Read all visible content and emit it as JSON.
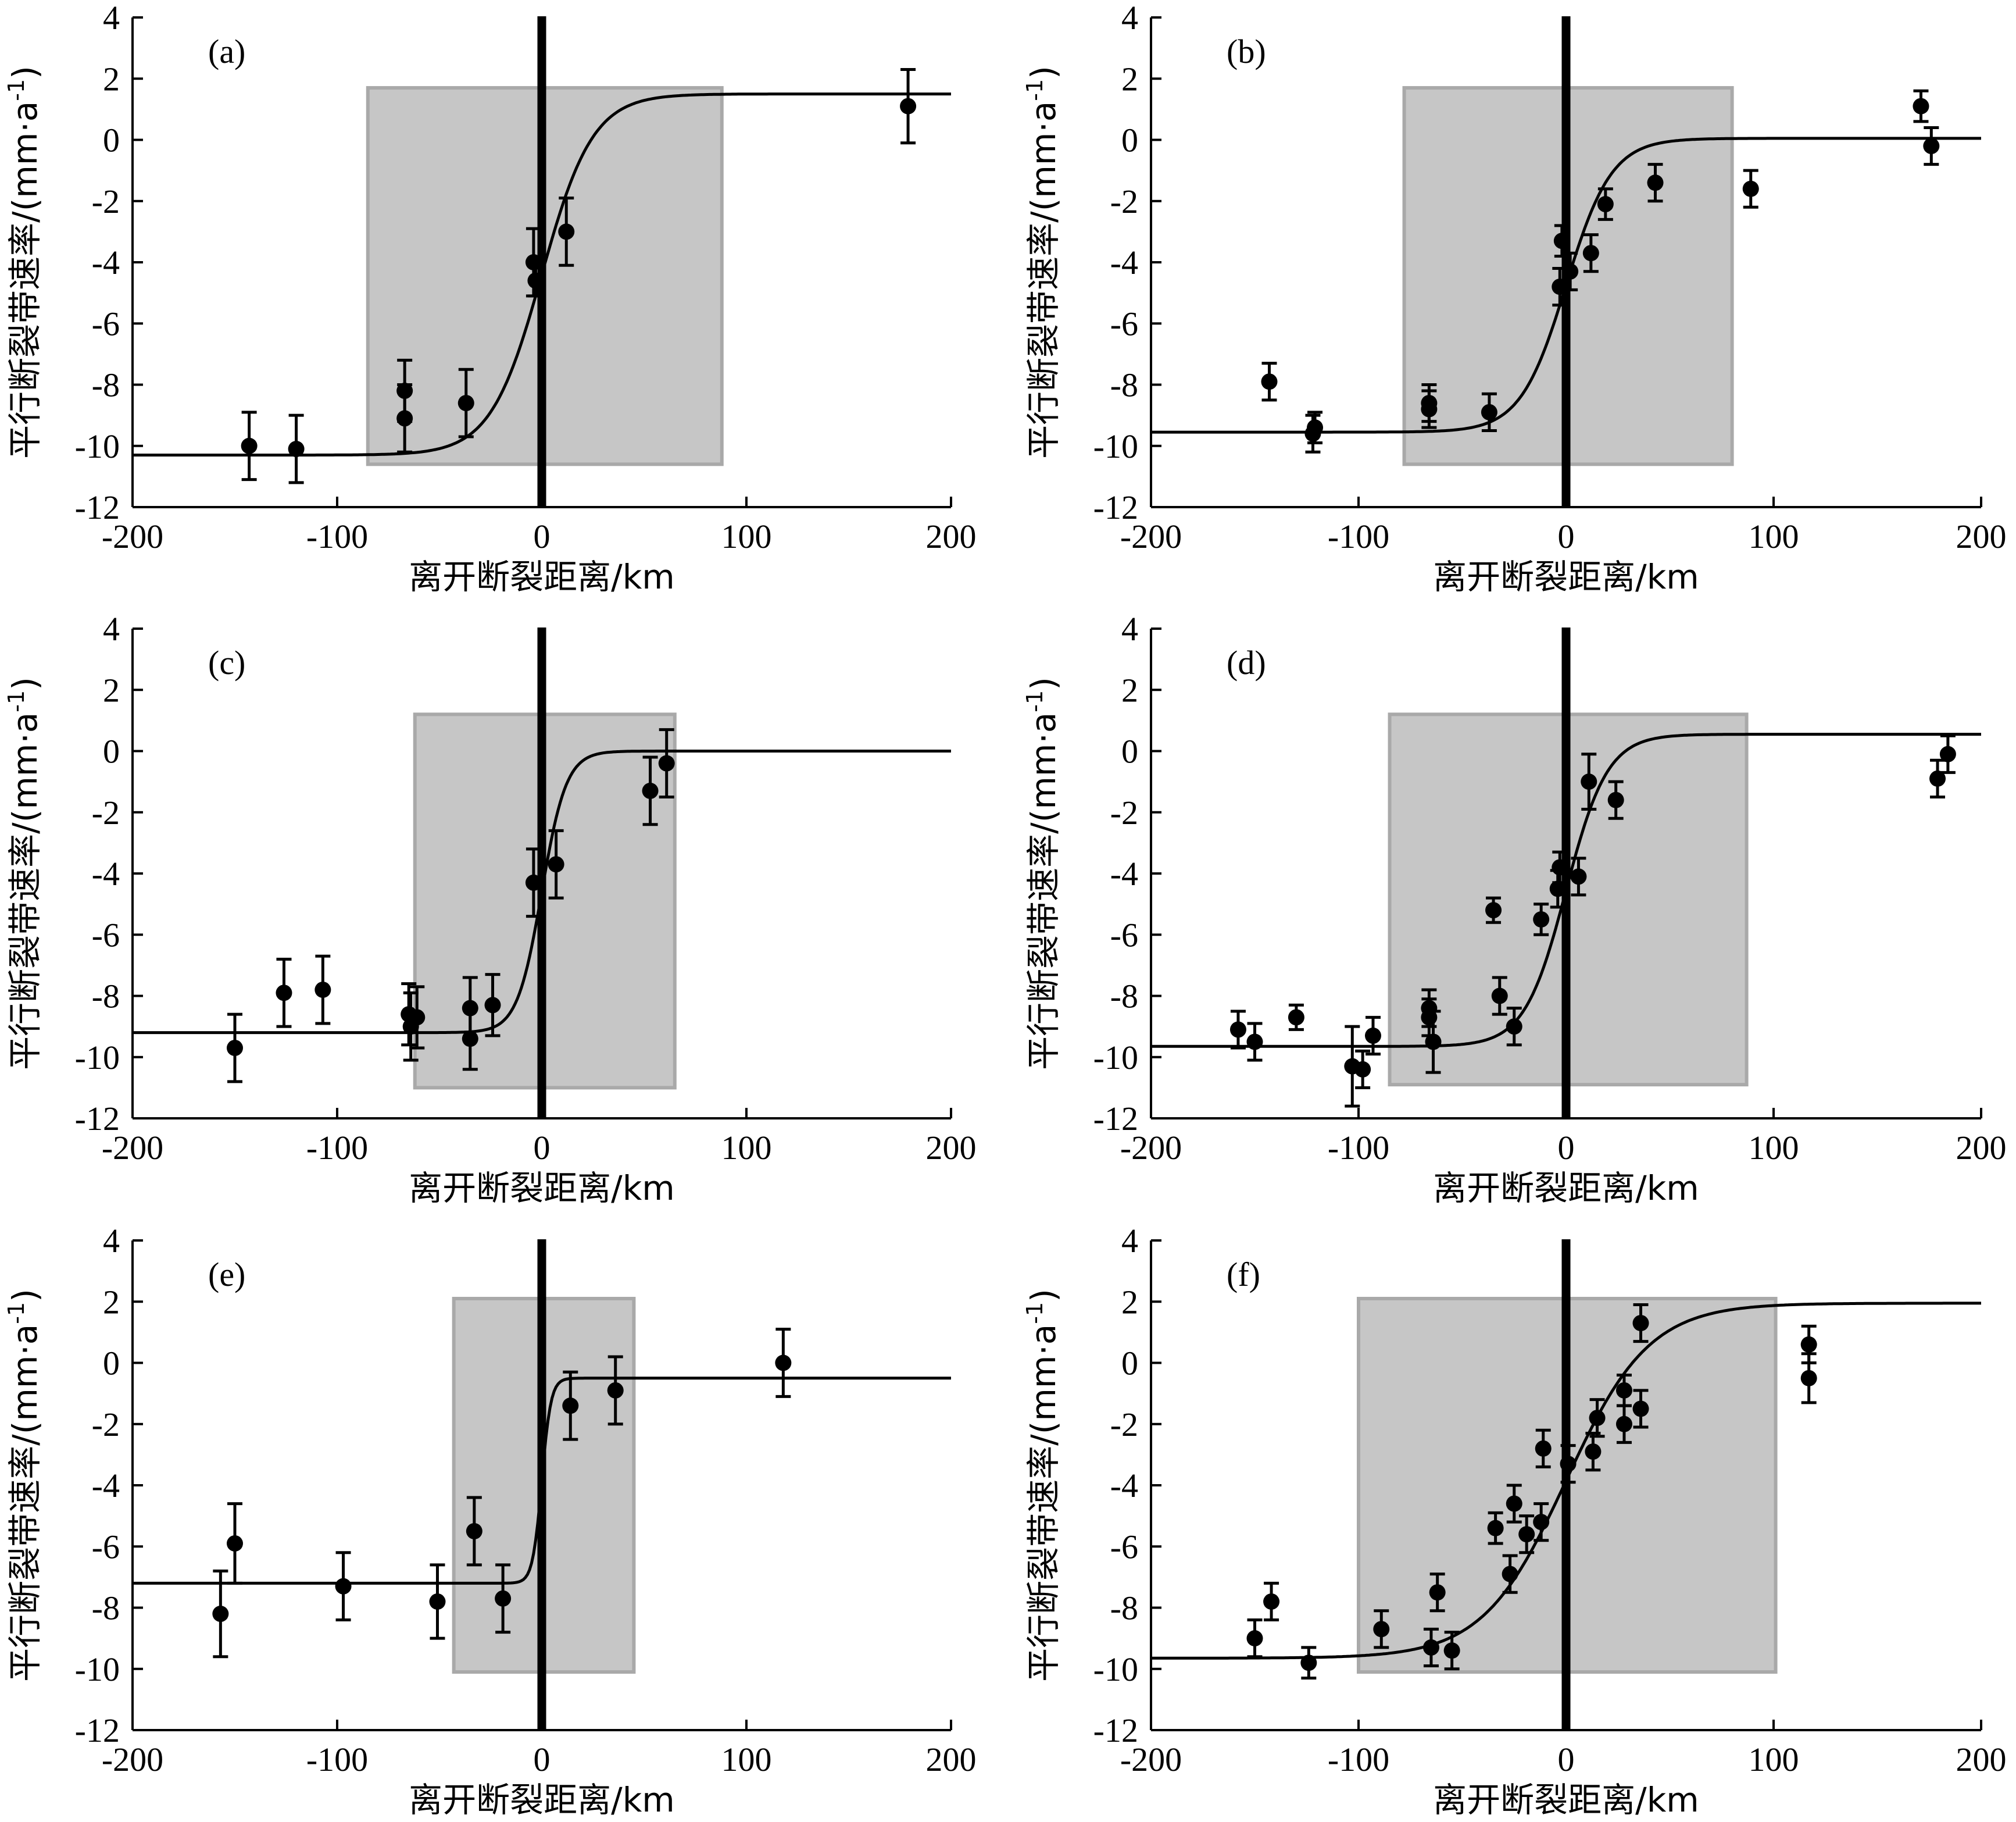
{
  "chart_data": [
    {
      "panel": "(a)",
      "type": "scatter",
      "xlabel": "离开断裂距离/km",
      "ylabel": "平行断裂带速率/(mm·a",
      "ylabel_sup": "-1",
      "ylabel_close": ")",
      "xlim": [
        -200,
        200
      ],
      "ylim": [
        -12,
        4
      ],
      "xticks": [
        -200,
        -100,
        0,
        100,
        200
      ],
      "yticks": [
        -12,
        -10,
        -8,
        -6,
        -4,
        -2,
        0,
        2,
        4
      ],
      "shade": {
        "x0": -85,
        "x1": 88,
        "y0": -10.6,
        "y1": 1.7
      },
      "fault_line": 0,
      "curve": {
        "c": -4.4,
        "a": 5.9,
        "w": 25,
        "x0": 0
      },
      "points": [
        {
          "x": -143,
          "y": -10.0,
          "err": 1.1
        },
        {
          "x": -120,
          "y": -10.1,
          "err": 1.1
        },
        {
          "x": -67,
          "y": -8.2,
          "err": 1.0
        },
        {
          "x": -67,
          "y": -9.1,
          "err": 1.1
        },
        {
          "x": -37,
          "y": -8.6,
          "err": 1.1
        },
        {
          "x": -4,
          "y": -4.0,
          "err": 1.1
        },
        {
          "x": -3,
          "y": -4.6,
          "err": 0.5
        },
        {
          "x": 12,
          "y": -3.0,
          "err": 1.1
        },
        {
          "x": 179,
          "y": 1.1,
          "err": 1.2
        }
      ]
    },
    {
      "panel": "(b)",
      "type": "scatter",
      "xlabel": "离开断裂距离/km",
      "ylabel": "平行断裂带速率/(mm·a",
      "ylabel_sup": "-1",
      "ylabel_close": ")",
      "xlim": [
        -200,
        200
      ],
      "ylim": [
        -12,
        4
      ],
      "xticks": [
        -200,
        -100,
        0,
        100,
        200
      ],
      "yticks": [
        -12,
        -10,
        -8,
        -6,
        -4,
        -2,
        0,
        2,
        4
      ],
      "shade": {
        "x0": -78,
        "x1": 80,
        "y0": -10.6,
        "y1": 1.7
      },
      "fault_line": 0,
      "curve": {
        "c": -4.75,
        "a": 4.8,
        "w": 22,
        "x0": 0
      },
      "points": [
        {
          "x": -143,
          "y": -7.9,
          "err": 0.6
        },
        {
          "x": -122,
          "y": -9.6,
          "err": 0.6
        },
        {
          "x": -121,
          "y": -9.4,
          "err": 0.5
        },
        {
          "x": -66,
          "y": -8.6,
          "err": 0.6
        },
        {
          "x": -66,
          "y": -8.8,
          "err": 0.6
        },
        {
          "x": -37,
          "y": -8.9,
          "err": 0.6
        },
        {
          "x": -3,
          "y": -4.8,
          "err": 0.6
        },
        {
          "x": -2,
          "y": -3.3,
          "err": 0.5
        },
        {
          "x": 2,
          "y": -4.3,
          "err": 0.6
        },
        {
          "x": 12,
          "y": -3.7,
          "err": 0.6
        },
        {
          "x": 19,
          "y": -2.1,
          "err": 0.5
        },
        {
          "x": 43,
          "y": -1.4,
          "err": 0.6
        },
        {
          "x": 89,
          "y": -1.6,
          "err": 0.6
        },
        {
          "x": 171,
          "y": 1.1,
          "err": 0.5
        },
        {
          "x": 176,
          "y": -0.2,
          "err": 0.6
        }
      ]
    },
    {
      "panel": "(c)",
      "type": "scatter",
      "xlabel": "离开断裂距离/km",
      "ylabel": "平行断裂带速率/(mm·a",
      "ylabel_sup": "-1",
      "ylabel_close": ")",
      "xlim": [
        -200,
        200
      ],
      "ylim": [
        -12,
        4
      ],
      "xticks": [
        -200,
        -100,
        0,
        100,
        200
      ],
      "yticks": [
        -12,
        -10,
        -8,
        -6,
        -4,
        -2,
        0,
        2,
        4
      ],
      "shade": {
        "x0": -62,
        "x1": 65,
        "y0": -11.0,
        "y1": 1.2
      },
      "fault_line": 0,
      "curve": {
        "c": -4.6,
        "a": 4.6,
        "w": 12,
        "x0": 0
      },
      "points": [
        {
          "x": -150,
          "y": -9.7,
          "err": 1.1
        },
        {
          "x": -126,
          "y": -7.9,
          "err": 1.1
        },
        {
          "x": -107,
          "y": -7.8,
          "err": 1.1
        },
        {
          "x": -65,
          "y": -8.6,
          "err": 1.0
        },
        {
          "x": -64,
          "y": -9.0,
          "err": 1.1
        },
        {
          "x": -61,
          "y": -8.7,
          "err": 1.0
        },
        {
          "x": -35,
          "y": -8.4,
          "err": 1.0
        },
        {
          "x": -35,
          "y": -9.4,
          "err": 1.0
        },
        {
          "x": -24,
          "y": -8.3,
          "err": 1.0
        },
        {
          "x": -4,
          "y": -4.3,
          "err": 1.1
        },
        {
          "x": 7,
          "y": -3.7,
          "err": 1.1
        },
        {
          "x": 53,
          "y": -1.3,
          "err": 1.1
        },
        {
          "x": 61,
          "y": -0.4,
          "err": 1.1
        }
      ]
    },
    {
      "panel": "(d)",
      "type": "scatter",
      "xlabel": "离开断裂距离/km",
      "ylabel": "平行断裂带速率/(mm·a",
      "ylabel_sup": "-1",
      "ylabel_close": ")",
      "xlim": [
        -200,
        200
      ],
      "ylim": [
        -12,
        4
      ],
      "xticks": [
        -200,
        -100,
        0,
        100,
        200
      ],
      "yticks": [
        -12,
        -10,
        -8,
        -6,
        -4,
        -2,
        0,
        2,
        4
      ],
      "shade": {
        "x0": -85,
        "x1": 87,
        "y0": -10.9,
        "y1": 1.2
      },
      "fault_line": 0,
      "curve": {
        "c": -4.55,
        "a": 5.1,
        "w": 20,
        "x0": 0
      },
      "points": [
        {
          "x": -158,
          "y": -9.1,
          "err": 0.6
        },
        {
          "x": -150,
          "y": -9.5,
          "err": 0.6
        },
        {
          "x": -130,
          "y": -8.7,
          "err": 0.4
        },
        {
          "x": -103,
          "y": -10.3,
          "err": 1.3
        },
        {
          "x": -98,
          "y": -10.4,
          "err": 0.6
        },
        {
          "x": -93,
          "y": -9.3,
          "err": 0.6
        },
        {
          "x": -66,
          "y": -8.4,
          "err": 0.6
        },
        {
          "x": -66,
          "y": -8.7,
          "err": 0.6
        },
        {
          "x": -64,
          "y": -9.5,
          "err": 1.0
        },
        {
          "x": -35,
          "y": -5.2,
          "err": 0.4
        },
        {
          "x": -32,
          "y": -8.0,
          "err": 0.6
        },
        {
          "x": -25,
          "y": -9.0,
          "err": 0.6
        },
        {
          "x": -12,
          "y": -5.5,
          "err": 0.5
        },
        {
          "x": -4,
          "y": -4.5,
          "err": 0.6
        },
        {
          "x": -3,
          "y": -3.8,
          "err": 0.5
        },
        {
          "x": 6,
          "y": -4.1,
          "err": 0.6
        },
        {
          "x": 11,
          "y": -1.0,
          "err": 0.9
        },
        {
          "x": 24,
          "y": -1.6,
          "err": 0.6
        },
        {
          "x": 179,
          "y": -0.9,
          "err": 0.6
        },
        {
          "x": 184,
          "y": -0.1,
          "err": 0.6
        }
      ]
    },
    {
      "panel": "(e)",
      "type": "scatter",
      "xlabel": "离开断裂距离/km",
      "ylabel": "平行断裂带速率/(mm·a",
      "ylabel_sup": "-1",
      "ylabel_close": ")",
      "xlim": [
        -200,
        200
      ],
      "ylim": [
        -12,
        4
      ],
      "xticks": [
        -200,
        -100,
        0,
        100,
        200
      ],
      "yticks": [
        -12,
        -10,
        -8,
        -6,
        -4,
        -2,
        0,
        2,
        4
      ],
      "shade": {
        "x0": -43,
        "x1": 45,
        "y0": -10.1,
        "y1": 2.1
      },
      "fault_line": 0,
      "curve": {
        "c": -3.85,
        "a": 3.35,
        "w": 4.5,
        "x0": 0
      },
      "points": [
        {
          "x": -157,
          "y": -8.2,
          "err": 1.4
        },
        {
          "x": -150,
          "y": -5.9,
          "err": 1.3
        },
        {
          "x": -97,
          "y": -7.3,
          "err": 1.1
        },
        {
          "x": -51,
          "y": -7.8,
          "err": 1.2
        },
        {
          "x": -33,
          "y": -5.5,
          "err": 1.1
        },
        {
          "x": -19,
          "y": -7.7,
          "err": 1.1
        },
        {
          "x": 14,
          "y": -1.4,
          "err": 1.1
        },
        {
          "x": 36,
          "y": -0.9,
          "err": 1.1
        },
        {
          "x": 118,
          "y": 0.0,
          "err": 1.1
        }
      ]
    },
    {
      "panel": "(f)",
      "type": "scatter",
      "xlabel": "离开断裂距离/km",
      "ylabel": "平行断裂带速率/(mm·a",
      "ylabel_sup": "-1",
      "ylabel_close": ")",
      "xlim": [
        -200,
        200
      ],
      "ylim": [
        -12,
        4
      ],
      "xticks": [
        -200,
        -100,
        0,
        100,
        200
      ],
      "yticks": [
        -12,
        -10,
        -8,
        -6,
        -4,
        -2,
        0,
        2,
        4
      ],
      "shade": {
        "x0": -100,
        "x1": 101,
        "y0": -10.1,
        "y1": 2.1
      },
      "fault_line": 0,
      "curve": {
        "c": -3.85,
        "a": 5.8,
        "w": 40,
        "x0": 0
      },
      "points": [
        {
          "x": -150,
          "y": -9.0,
          "err": 0.6
        },
        {
          "x": -142,
          "y": -7.8,
          "err": 0.6
        },
        {
          "x": -124,
          "y": -9.8,
          "err": 0.5
        },
        {
          "x": -89,
          "y": -8.7,
          "err": 0.6
        },
        {
          "x": -62,
          "y": -7.5,
          "err": 0.6
        },
        {
          "x": -65,
          "y": -9.3,
          "err": 0.6
        },
        {
          "x": -55,
          "y": -9.4,
          "err": 0.6
        },
        {
          "x": -34,
          "y": -5.4,
          "err": 0.5
        },
        {
          "x": -27,
          "y": -6.9,
          "err": 0.6
        },
        {
          "x": -25,
          "y": -4.6,
          "err": 0.6
        },
        {
          "x": -19,
          "y": -5.6,
          "err": 0.6
        },
        {
          "x": -12,
          "y": -5.2,
          "err": 0.6
        },
        {
          "x": -11,
          "y": -2.8,
          "err": 0.6
        },
        {
          "x": 1,
          "y": -3.3,
          "err": 0.6
        },
        {
          "x": 13,
          "y": -2.9,
          "err": 0.6
        },
        {
          "x": 15,
          "y": -1.8,
          "err": 0.6
        },
        {
          "x": 28,
          "y": -0.9,
          "err": 0.5
        },
        {
          "x": 28,
          "y": -2.0,
          "err": 0.6
        },
        {
          "x": 36,
          "y": 1.3,
          "err": 0.6
        },
        {
          "x": 36,
          "y": -1.5,
          "err": 0.6
        },
        {
          "x": 117,
          "y": 0.6,
          "err": 0.6
        },
        {
          "x": 117,
          "y": -0.5,
          "err": 0.8
        }
      ]
    }
  ]
}
